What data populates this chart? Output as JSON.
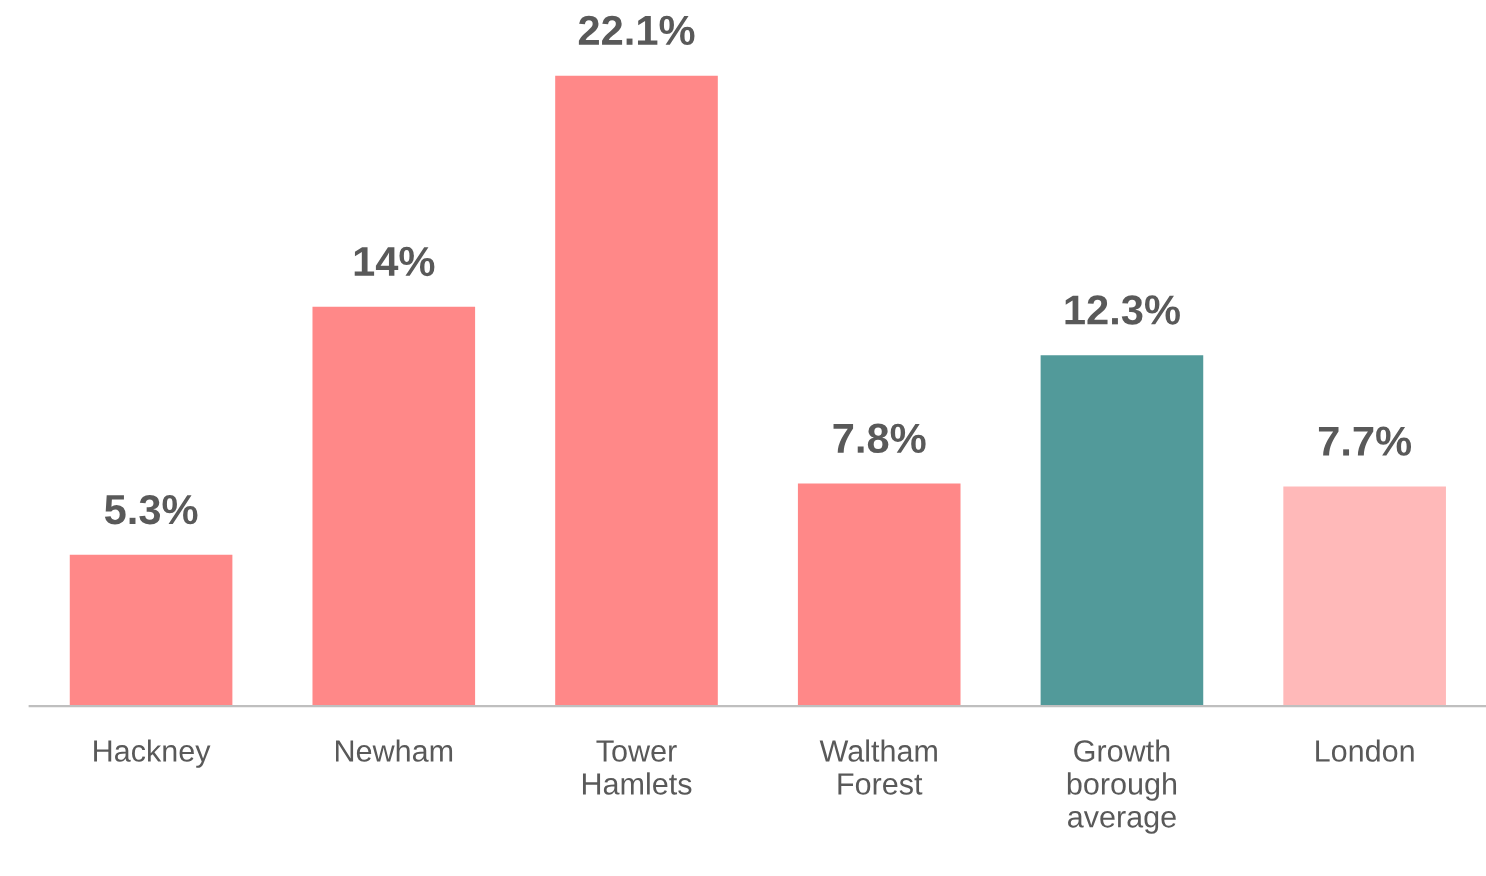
{
  "chart_data": {
    "type": "bar",
    "categories": [
      "Hackney",
      "Newham",
      "Tower\nHamlets",
      "Waltham\nForest",
      "Growth\nborough\naverage",
      "London"
    ],
    "values": [
      5.3,
      14,
      22.1,
      7.8,
      12.3,
      7.7
    ],
    "value_labels": [
      "5.3%",
      "14%",
      "22.1%",
      "7.8%",
      "12.3%",
      "7.7%"
    ],
    "colors": [
      "#ff8888",
      "#ff8888",
      "#ff8888",
      "#ff8888",
      "#529a9a",
      "#ffb9b9"
    ],
    "grid": false,
    "legend": false
  }
}
